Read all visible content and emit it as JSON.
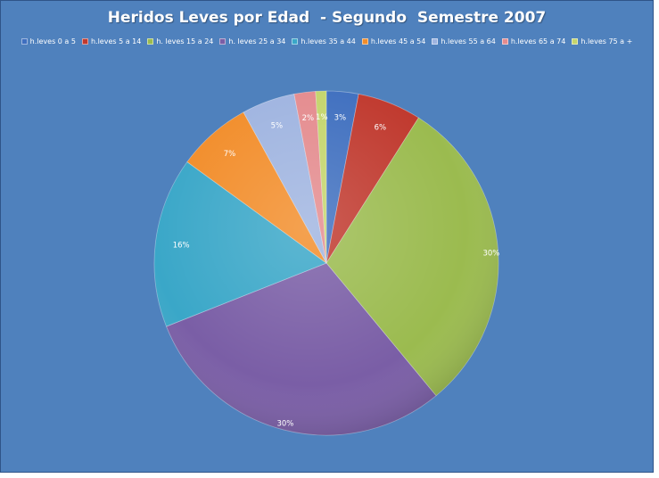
{
  "chart_data": {
    "type": "pie",
    "title": "Heridos Leves por Edad  - Segundo  Semestre 2007",
    "legend_position": "top",
    "categories": [
      "h.leves 0 a 5",
      "h.leves 5 a 14",
      "h. leves 15 a 24",
      "h. leves 25 a 34",
      "h.leves 35 a 44",
      "h.leves 45 a 54",
      "h.leves 55 a 64",
      "h.leves 65 a 74",
      "h.leves 75 a +"
    ],
    "values": [
      3,
      6,
      30,
      30,
      16,
      7,
      5,
      2,
      1
    ],
    "labels": [
      "3%",
      "6%",
      "30%",
      "30%",
      "16%",
      "7%",
      "5%",
      "2%",
      "1%"
    ],
    "colors": [
      "#3f6fbf",
      "#c0392e",
      "#9bbb4f",
      "#7a5ea6",
      "#3aa7c8",
      "#f28d2a",
      "#9fb4e0",
      "#e48b8e",
      "#c4d56c"
    ],
    "background_color": "#4f81bd"
  }
}
